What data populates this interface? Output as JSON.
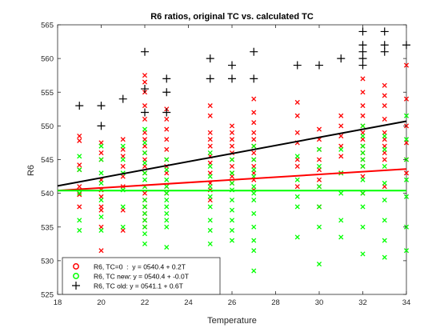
{
  "chart_data": {
    "type": "scatter",
    "title": "R6 ratios, original TC vs. calculated TC",
    "xlabel": "Temperature",
    "ylabel": "R6",
    "xlim": [
      18,
      34
    ],
    "ylim": [
      525,
      565
    ],
    "xticks": [
      18,
      20,
      22,
      24,
      26,
      28,
      30,
      32,
      34
    ],
    "yticks": [
      525,
      530,
      535,
      540,
      545,
      550,
      555,
      560,
      565
    ],
    "grid": false,
    "legend_position": "bottom-left",
    "series": [
      {
        "name": "R6, TC=0  :  y = 0540.4 + 0.2T",
        "color": "#ff0000",
        "marker": "x",
        "fit": {
          "intercept": 540.4,
          "slope": 0.2,
          "x0": 18
        },
        "x": [
          19,
          19,
          19,
          19,
          19,
          19,
          19,
          20,
          20,
          20,
          20,
          20,
          20,
          20,
          20,
          20,
          20,
          20,
          21,
          21,
          21,
          21,
          21,
          21,
          21,
          21,
          22,
          22,
          22,
          22,
          22,
          22,
          22,
          22,
          22,
          22,
          22,
          22,
          22,
          22,
          22,
          22,
          22,
          22,
          22,
          23,
          23,
          23,
          23,
          23,
          23,
          23,
          23,
          23,
          23,
          25,
          25,
          25,
          25,
          25,
          25,
          25,
          25,
          25,
          25,
          25,
          26,
          26,
          26,
          26,
          26,
          26,
          26,
          26,
          26,
          26,
          27,
          27,
          27,
          27,
          27,
          27,
          27,
          27,
          27,
          27,
          27,
          27,
          29,
          29,
          29,
          29,
          29,
          29,
          29,
          30,
          30,
          30,
          30,
          30,
          30,
          30,
          30,
          31,
          31,
          31,
          31,
          31,
          31,
          32,
          32,
          32,
          32,
          32,
          32,
          32,
          32,
          32,
          32,
          32,
          32,
          32,
          33,
          33,
          33,
          33,
          33,
          33,
          33,
          33,
          33,
          33,
          34,
          34,
          34,
          34,
          34,
          34
        ],
        "y": [
          548.5,
          547.8,
          544.2,
          543.5,
          541,
          539.8,
          538,
          547.5,
          546,
          545,
          542,
          540.5,
          539.5,
          538,
          537.5,
          535,
          531.5,
          529.5,
          548,
          546.5,
          545.5,
          544,
          542.5,
          541,
          537.5,
          534.5,
          557.5,
          556.5,
          555,
          553,
          551,
          549,
          548,
          547,
          546,
          545,
          544,
          543,
          541,
          540,
          539,
          538,
          537,
          536,
          535,
          552.5,
          551,
          549.5,
          548,
          546.5,
          545,
          544,
          543,
          541,
          540,
          553,
          551.5,
          549,
          548,
          547,
          545.5,
          544.5,
          543,
          541.5,
          540.5,
          539,
          550,
          549,
          548,
          547,
          546,
          545,
          544,
          543,
          542.5,
          541.5,
          554,
          552,
          550.5,
          549,
          548,
          547,
          546,
          545,
          544,
          543,
          542,
          540.5,
          553.5,
          551.5,
          549,
          547.5,
          545,
          544,
          541,
          549.5,
          548,
          546.5,
          545,
          543.5,
          542,
          541,
          538,
          551.5,
          550,
          548.5,
          547,
          545.5,
          543,
          557,
          555,
          553,
          551.5,
          550,
          549,
          548,
          547,
          546,
          545,
          544,
          542.5,
          540,
          556,
          554.5,
          553,
          551,
          549,
          548,
          547,
          546,
          545,
          541,
          559,
          554,
          550,
          547.5,
          545,
          543
        ]
      },
      {
        "name": "R6, TC new: y = 0540.4 + -0.0T",
        "color": "#00ff00",
        "marker": "x",
        "fit": {
          "intercept": 540.4,
          "slope": 0.0,
          "x0": 18
        },
        "x": [
          19,
          19,
          19,
          19,
          19,
          20,
          20,
          20,
          20,
          20,
          20,
          20,
          20,
          21,
          21,
          21,
          21,
          21,
          21,
          22,
          22,
          22,
          22,
          22,
          22,
          22,
          22,
          22,
          22,
          22,
          22,
          22,
          22,
          23,
          23,
          23,
          23,
          23,
          23,
          23,
          23,
          23,
          23,
          23,
          25,
          25,
          25,
          25,
          25,
          25,
          25,
          25,
          25,
          26,
          26,
          26,
          26,
          26,
          26,
          26,
          26,
          26,
          27,
          27,
          27,
          27,
          27,
          27,
          27,
          27,
          27,
          27,
          27,
          27,
          29,
          29,
          29,
          29,
          29,
          30,
          30,
          30,
          30,
          30,
          30,
          31,
          31,
          31,
          31,
          31,
          32,
          32,
          32,
          32,
          32,
          32,
          32,
          32,
          32,
          32,
          32,
          33,
          33,
          33,
          33,
          33,
          33,
          33,
          33,
          34,
          34,
          34,
          34,
          34,
          34,
          34
        ],
        "y": [
          545.5,
          543.5,
          540,
          536,
          534.5,
          547,
          545,
          543,
          541.5,
          539,
          536.5,
          534.5,
          530,
          547,
          545,
          543,
          540.5,
          538,
          535,
          549.5,
          547.5,
          546,
          544.5,
          543,
          542,
          541,
          539,
          538,
          537,
          536,
          535,
          534,
          532.5,
          545,
          543.5,
          542,
          541,
          540,
          539,
          538,
          537,
          536,
          535,
          532,
          546,
          544,
          542.5,
          541,
          539.5,
          538,
          536,
          534.5,
          532.5,
          545,
          543,
          541.5,
          540.5,
          539,
          537.5,
          536,
          534.5,
          533,
          547,
          545,
          543.5,
          542.5,
          541,
          540,
          539,
          537,
          535,
          533,
          531.5,
          528.5,
          545.5,
          542,
          539.5,
          538,
          533.5,
          546.5,
          544,
          541,
          538,
          535,
          529.5,
          546.5,
          543,
          540,
          536,
          533.5,
          550,
          548.5,
          547,
          546,
          545,
          544,
          542,
          540,
          538,
          535,
          531,
          548.5,
          546.5,
          544,
          541.5,
          539,
          536,
          533,
          530.5,
          551.5,
          548,
          545,
          542,
          539.5,
          535,
          531.5
        ]
      },
      {
        "name": "R6, TC old: y = 0541.1 + 0.6T",
        "color": "#000000",
        "marker": "+",
        "fit": {
          "intercept": 541.1,
          "slope": 0.6,
          "x0": 18
        },
        "x": [
          19,
          20,
          20,
          21,
          22,
          22,
          22,
          23,
          23,
          23,
          25,
          25,
          26,
          26,
          27,
          27,
          29,
          30,
          31,
          32,
          32,
          32,
          32,
          32,
          33,
          33,
          33,
          34
        ],
        "y": [
          553,
          553,
          550,
          554,
          561,
          555.5,
          552,
          557,
          555,
          552,
          560,
          557,
          559,
          557,
          561,
          557,
          559,
          559,
          560,
          564,
          562,
          561,
          560,
          559,
          564,
          562,
          561,
          562
        ]
      }
    ]
  },
  "legend_markers": {
    "tc0": "circle",
    "tcnew": "circle",
    "tcold": "plus"
  }
}
